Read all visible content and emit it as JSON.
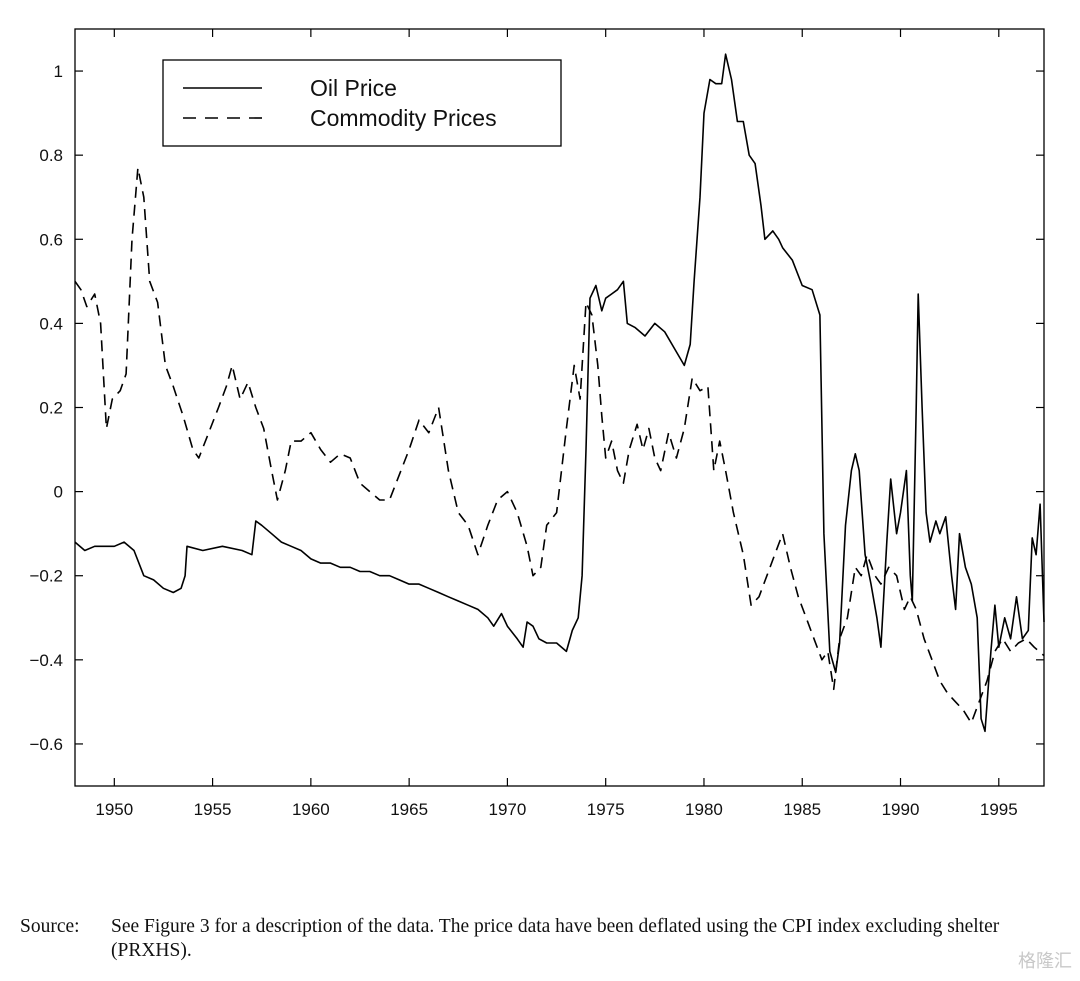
{
  "chart_data": {
    "type": "line",
    "title": "",
    "xlabel": "",
    "ylabel": "",
    "xlim": [
      1948,
      1997.3
    ],
    "ylim": [
      -0.7,
      1.1
    ],
    "x_ticks": [
      1950,
      1955,
      1960,
      1965,
      1970,
      1975,
      1980,
      1985,
      1990,
      1995
    ],
    "x_tick_labels": [
      "1950",
      "1955",
      "1960",
      "1965",
      "1970",
      "1975",
      "1980",
      "1985",
      "1990",
      "1995"
    ],
    "y_ticks": [
      -0.6,
      -0.4,
      -0.2,
      0,
      0.2,
      0.4,
      0.6,
      0.8,
      1
    ],
    "y_tick_labels": [
      "−0.6",
      "−0.4",
      "−0.2",
      "0",
      "0.2",
      "0.4",
      "0.6",
      "0.8",
      "1"
    ],
    "grid": false,
    "legend_position": "top-left",
    "series": [
      {
        "name": "Oil Price",
        "style": "solid",
        "color": "#000000",
        "points": [
          [
            1948.0,
            -0.12
          ],
          [
            1948.5,
            -0.14
          ],
          [
            1949.0,
            -0.13
          ],
          [
            1949.5,
            -0.13
          ],
          [
            1950.0,
            -0.13
          ],
          [
            1950.5,
            -0.12
          ],
          [
            1951.0,
            -0.14
          ],
          [
            1951.5,
            -0.2
          ],
          [
            1952.0,
            -0.21
          ],
          [
            1952.5,
            -0.23
          ],
          [
            1953.0,
            -0.24
          ],
          [
            1953.4,
            -0.23
          ],
          [
            1953.6,
            -0.2
          ],
          [
            1953.7,
            -0.13
          ],
          [
            1954.5,
            -0.14
          ],
          [
            1955.5,
            -0.13
          ],
          [
            1956.5,
            -0.14
          ],
          [
            1957.0,
            -0.15
          ],
          [
            1957.2,
            -0.07
          ],
          [
            1957.5,
            -0.08
          ],
          [
            1958.0,
            -0.1
          ],
          [
            1958.5,
            -0.12
          ],
          [
            1959.0,
            -0.13
          ],
          [
            1959.5,
            -0.14
          ],
          [
            1960.0,
            -0.16
          ],
          [
            1960.5,
            -0.17
          ],
          [
            1961.0,
            -0.17
          ],
          [
            1961.5,
            -0.18
          ],
          [
            1962.0,
            -0.18
          ],
          [
            1962.5,
            -0.19
          ],
          [
            1963.0,
            -0.19
          ],
          [
            1963.5,
            -0.2
          ],
          [
            1964.0,
            -0.2
          ],
          [
            1964.5,
            -0.21
          ],
          [
            1965.0,
            -0.22
          ],
          [
            1965.5,
            -0.22
          ],
          [
            1966.0,
            -0.23
          ],
          [
            1966.5,
            -0.24
          ],
          [
            1967.0,
            -0.25
          ],
          [
            1967.5,
            -0.26
          ],
          [
            1968.0,
            -0.27
          ],
          [
            1968.5,
            -0.28
          ],
          [
            1969.0,
            -0.3
          ],
          [
            1969.3,
            -0.32
          ],
          [
            1969.7,
            -0.29
          ],
          [
            1970.0,
            -0.32
          ],
          [
            1970.5,
            -0.35
          ],
          [
            1970.8,
            -0.37
          ],
          [
            1971.0,
            -0.31
          ],
          [
            1971.3,
            -0.32
          ],
          [
            1971.6,
            -0.35
          ],
          [
            1972.0,
            -0.36
          ],
          [
            1972.5,
            -0.36
          ],
          [
            1973.0,
            -0.38
          ],
          [
            1973.3,
            -0.33
          ],
          [
            1973.6,
            -0.3
          ],
          [
            1973.8,
            -0.2
          ],
          [
            1974.0,
            0.1
          ],
          [
            1974.2,
            0.46
          ],
          [
            1974.5,
            0.49
          ],
          [
            1974.8,
            0.43
          ],
          [
            1975.0,
            0.46
          ],
          [
            1975.3,
            0.47
          ],
          [
            1975.6,
            0.48
          ],
          [
            1975.9,
            0.5
          ],
          [
            1976.1,
            0.4
          ],
          [
            1976.5,
            0.39
          ],
          [
            1977.0,
            0.37
          ],
          [
            1977.5,
            0.4
          ],
          [
            1978.0,
            0.38
          ],
          [
            1978.5,
            0.34
          ],
          [
            1979.0,
            0.3
          ],
          [
            1979.3,
            0.35
          ],
          [
            1979.5,
            0.5
          ],
          [
            1979.8,
            0.7
          ],
          [
            1980.0,
            0.9
          ],
          [
            1980.3,
            0.98
          ],
          [
            1980.6,
            0.97
          ],
          [
            1980.9,
            0.97
          ],
          [
            1981.1,
            1.04
          ],
          [
            1981.4,
            0.98
          ],
          [
            1981.7,
            0.88
          ],
          [
            1982.0,
            0.88
          ],
          [
            1982.3,
            0.8
          ],
          [
            1982.6,
            0.78
          ],
          [
            1982.9,
            0.68
          ],
          [
            1983.1,
            0.6
          ],
          [
            1983.5,
            0.62
          ],
          [
            1983.8,
            0.6
          ],
          [
            1984.0,
            0.58
          ],
          [
            1984.5,
            0.55
          ],
          [
            1985.0,
            0.49
          ],
          [
            1985.5,
            0.48
          ],
          [
            1985.9,
            0.42
          ],
          [
            1986.1,
            -0.1
          ],
          [
            1986.4,
            -0.38
          ],
          [
            1986.7,
            -0.43
          ],
          [
            1986.9,
            -0.36
          ],
          [
            1987.2,
            -0.08
          ],
          [
            1987.5,
            0.05
          ],
          [
            1987.7,
            0.09
          ],
          [
            1987.9,
            0.05
          ],
          [
            1988.2,
            -0.15
          ],
          [
            1988.5,
            -0.22
          ],
          [
            1988.8,
            -0.3
          ],
          [
            1989.0,
            -0.37
          ],
          [
            1989.3,
            -0.12
          ],
          [
            1989.5,
            0.03
          ],
          [
            1989.8,
            -0.1
          ],
          [
            1990.0,
            -0.05
          ],
          [
            1990.3,
            0.05
          ],
          [
            1990.5,
            -0.2
          ],
          [
            1990.6,
            -0.26
          ],
          [
            1990.8,
            0.2
          ],
          [
            1990.9,
            0.47
          ],
          [
            1991.1,
            0.2
          ],
          [
            1991.3,
            -0.05
          ],
          [
            1991.5,
            -0.12
          ],
          [
            1991.8,
            -0.07
          ],
          [
            1992.0,
            -0.1
          ],
          [
            1992.3,
            -0.06
          ],
          [
            1992.6,
            -0.2
          ],
          [
            1992.8,
            -0.28
          ],
          [
            1993.0,
            -0.1
          ],
          [
            1993.3,
            -0.18
          ],
          [
            1993.6,
            -0.22
          ],
          [
            1993.9,
            -0.3
          ],
          [
            1994.1,
            -0.54
          ],
          [
            1994.3,
            -0.57
          ],
          [
            1994.6,
            -0.38
          ],
          [
            1994.8,
            -0.27
          ],
          [
            1995.0,
            -0.37
          ],
          [
            1995.3,
            -0.3
          ],
          [
            1995.6,
            -0.35
          ],
          [
            1995.9,
            -0.25
          ],
          [
            1996.2,
            -0.35
          ],
          [
            1996.5,
            -0.33
          ],
          [
            1996.7,
            -0.11
          ],
          [
            1996.9,
            -0.15
          ],
          [
            1997.1,
            -0.03
          ],
          [
            1997.3,
            -0.31
          ]
        ]
      },
      {
        "name": "Commodity Prices",
        "style": "dashed",
        "color": "#000000",
        "points": [
          [
            1948.0,
            0.5
          ],
          [
            1948.3,
            0.48
          ],
          [
            1948.6,
            0.44
          ],
          [
            1949.0,
            0.47
          ],
          [
            1949.3,
            0.4
          ],
          [
            1949.6,
            0.15
          ],
          [
            1949.9,
            0.22
          ],
          [
            1950.3,
            0.24
          ],
          [
            1950.6,
            0.28
          ],
          [
            1950.9,
            0.6
          ],
          [
            1951.2,
            0.77
          ],
          [
            1951.5,
            0.7
          ],
          [
            1951.8,
            0.5
          ],
          [
            1952.2,
            0.45
          ],
          [
            1952.6,
            0.3
          ],
          [
            1953.0,
            0.25
          ],
          [
            1953.5,
            0.18
          ],
          [
            1954.0,
            0.1
          ],
          [
            1954.3,
            0.08
          ],
          [
            1954.8,
            0.14
          ],
          [
            1955.3,
            0.2
          ],
          [
            1955.7,
            0.25
          ],
          [
            1956.0,
            0.3
          ],
          [
            1956.4,
            0.22
          ],
          [
            1956.8,
            0.26
          ],
          [
            1957.2,
            0.2
          ],
          [
            1957.6,
            0.15
          ],
          [
            1958.0,
            0.05
          ],
          [
            1958.3,
            -0.02
          ],
          [
            1958.7,
            0.05
          ],
          [
            1959.0,
            0.12
          ],
          [
            1959.5,
            0.12
          ],
          [
            1960.0,
            0.14
          ],
          [
            1960.5,
            0.1
          ],
          [
            1961.0,
            0.07
          ],
          [
            1961.5,
            0.09
          ],
          [
            1962.0,
            0.08
          ],
          [
            1962.5,
            0.02
          ],
          [
            1963.0,
            0.0
          ],
          [
            1963.5,
            -0.02
          ],
          [
            1964.0,
            -0.02
          ],
          [
            1964.5,
            0.04
          ],
          [
            1965.0,
            0.1
          ],
          [
            1965.5,
            0.17
          ],
          [
            1966.0,
            0.14
          ],
          [
            1966.5,
            0.2
          ],
          [
            1967.0,
            0.05
          ],
          [
            1967.5,
            -0.05
          ],
          [
            1968.0,
            -0.08
          ],
          [
            1968.5,
            -0.15
          ],
          [
            1969.0,
            -0.08
          ],
          [
            1969.5,
            -0.02
          ],
          [
            1970.0,
            0.0
          ],
          [
            1970.5,
            -0.05
          ],
          [
            1971.0,
            -0.13
          ],
          [
            1971.3,
            -0.2
          ],
          [
            1971.7,
            -0.18
          ],
          [
            1972.0,
            -0.08
          ],
          [
            1972.5,
            -0.05
          ],
          [
            1973.0,
            0.15
          ],
          [
            1973.4,
            0.3
          ],
          [
            1973.7,
            0.22
          ],
          [
            1974.0,
            0.45
          ],
          [
            1974.3,
            0.42
          ],
          [
            1974.6,
            0.3
          ],
          [
            1974.8,
            0.18
          ],
          [
            1975.0,
            0.08
          ],
          [
            1975.3,
            0.12
          ],
          [
            1975.6,
            0.05
          ],
          [
            1975.9,
            0.02
          ],
          [
            1976.2,
            0.1
          ],
          [
            1976.6,
            0.16
          ],
          [
            1976.9,
            0.1
          ],
          [
            1977.2,
            0.15
          ],
          [
            1977.5,
            0.08
          ],
          [
            1977.8,
            0.05
          ],
          [
            1978.2,
            0.14
          ],
          [
            1978.6,
            0.08
          ],
          [
            1979.0,
            0.15
          ],
          [
            1979.4,
            0.27
          ],
          [
            1979.8,
            0.24
          ],
          [
            1980.2,
            0.25
          ],
          [
            1980.5,
            0.05
          ],
          [
            1980.8,
            0.12
          ],
          [
            1981.1,
            0.05
          ],
          [
            1981.5,
            -0.05
          ],
          [
            1982.0,
            -0.15
          ],
          [
            1982.4,
            -0.27
          ],
          [
            1982.8,
            -0.25
          ],
          [
            1983.2,
            -0.2
          ],
          [
            1983.6,
            -0.15
          ],
          [
            1984.0,
            -0.1
          ],
          [
            1984.4,
            -0.18
          ],
          [
            1984.8,
            -0.25
          ],
          [
            1985.2,
            -0.3
          ],
          [
            1985.6,
            -0.35
          ],
          [
            1986.0,
            -0.4
          ],
          [
            1986.3,
            -0.38
          ],
          [
            1986.6,
            -0.47
          ],
          [
            1986.9,
            -0.35
          ],
          [
            1987.3,
            -0.3
          ],
          [
            1987.7,
            -0.18
          ],
          [
            1988.0,
            -0.2
          ],
          [
            1988.3,
            -0.15
          ],
          [
            1988.7,
            -0.2
          ],
          [
            1989.0,
            -0.22
          ],
          [
            1989.4,
            -0.18
          ],
          [
            1989.8,
            -0.2
          ],
          [
            1990.2,
            -0.28
          ],
          [
            1990.5,
            -0.25
          ],
          [
            1990.8,
            -0.28
          ],
          [
            1991.2,
            -0.35
          ],
          [
            1991.6,
            -0.4
          ],
          [
            1992.0,
            -0.45
          ],
          [
            1992.4,
            -0.48
          ],
          [
            1992.8,
            -0.5
          ],
          [
            1993.2,
            -0.52
          ],
          [
            1993.6,
            -0.55
          ],
          [
            1994.0,
            -0.5
          ],
          [
            1994.4,
            -0.45
          ],
          [
            1994.8,
            -0.38
          ],
          [
            1995.2,
            -0.35
          ],
          [
            1995.6,
            -0.38
          ],
          [
            1996.0,
            -0.36
          ],
          [
            1996.4,
            -0.35
          ],
          [
            1996.8,
            -0.37
          ],
          [
            1997.3,
            -0.39
          ]
        ]
      }
    ],
    "legend": [
      {
        "label": "Oil Price",
        "style": "solid"
      },
      {
        "label": "Commodity Prices",
        "style": "dashed"
      }
    ]
  },
  "caption": {
    "label": "Source:",
    "text": "See Figure 3 for a description of the data.  The price data have been deflated using the CPI index excluding shelter (PRXHS)."
  },
  "watermark": "格隆汇"
}
